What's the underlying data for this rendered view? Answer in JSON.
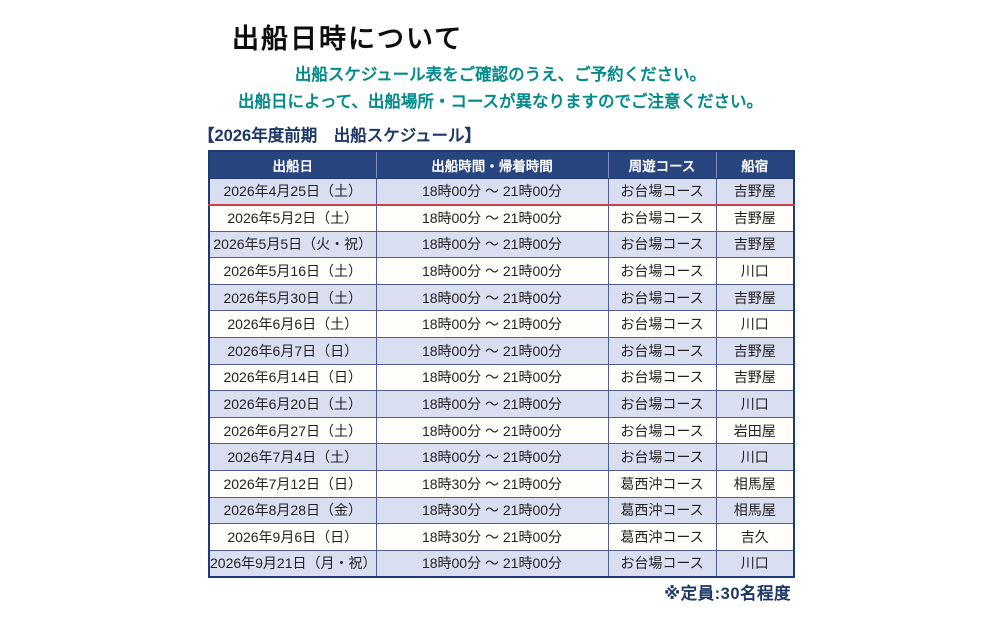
{
  "page": {
    "title": "出船日時について",
    "notes": [
      "出船スケジュール表をご確認のうえ、ご予約ください。",
      "出船日によって、出船場所・コースが異なりますのでご注意ください。"
    ],
    "schedule_heading": "【2026年度前期　出船スケジュール】",
    "capacity_note": "※定員:30名程度"
  },
  "colors": {
    "note_teal": "#038a8a",
    "heading_navy": "#1d3866",
    "header_bg": "#29457f",
    "header_text": "#ffffff",
    "outer_border": "#1e3a76",
    "grid_border": "#4e5f97",
    "row_alt_bg": "#d9dff0",
    "row_bg": "#fffefa",
    "red_divider": "#c4404e"
  },
  "table": {
    "columns": [
      "出船日",
      "出船時間・帰着時間",
      "周遊コース",
      "船宿"
    ],
    "rows": [
      {
        "date": "2026年4月25日（土）",
        "time": "18時00分 ～ 21時00分",
        "course": "お台場コース",
        "inn": "吉野屋"
      },
      {
        "date": "2026年5月2日（土）",
        "time": "18時00分 ～ 21時00分",
        "course": "お台場コース",
        "inn": "吉野屋"
      },
      {
        "date": "2026年5月5日（火・祝）",
        "time": "18時00分 ～ 21時00分",
        "course": "お台場コース",
        "inn": "吉野屋"
      },
      {
        "date": "2026年5月16日（土）",
        "time": "18時00分 ～ 21時00分",
        "course": "お台場コース",
        "inn": "川口"
      },
      {
        "date": "2026年5月30日（土）",
        "time": "18時00分 ～ 21時00分",
        "course": "お台場コース",
        "inn": "吉野屋"
      },
      {
        "date": "2026年6月6日（土）",
        "time": "18時00分 ～ 21時00分",
        "course": "お台場コース",
        "inn": "川口"
      },
      {
        "date": "2026年6月7日（日）",
        "time": "18時00分 ～ 21時00分",
        "course": "お台場コース",
        "inn": "吉野屋"
      },
      {
        "date": "2026年6月14日（日）",
        "time": "18時00分 ～ 21時00分",
        "course": "お台場コース",
        "inn": "吉野屋"
      },
      {
        "date": "2026年6月20日（土）",
        "time": "18時00分 ～ 21時00分",
        "course": "お台場コース",
        "inn": "川口"
      },
      {
        "date": "2026年6月27日（土）",
        "time": "18時00分 ～ 21時00分",
        "course": "お台場コース",
        "inn": "岩田屋"
      },
      {
        "date": "2026年7月4日（土）",
        "time": "18時00分 ～ 21時00分",
        "course": "お台場コース",
        "inn": "川口"
      },
      {
        "date": "2026年7月12日（日）",
        "time": "18時30分 ～ 21時00分",
        "course": "葛西沖コース",
        "inn": "相馬屋"
      },
      {
        "date": "2026年8月28日（金）",
        "time": "18時30分 ～ 21時00分",
        "course": "葛西沖コース",
        "inn": "相馬屋"
      },
      {
        "date": "2026年9月6日（日）",
        "time": "18時30分 ～ 21時00分",
        "course": "葛西沖コース",
        "inn": "吉久"
      },
      {
        "date": "2026年9月21日（月・祝）",
        "time": "18時00分 ～ 21時00分",
        "course": "お台場コース",
        "inn": "川口"
      }
    ]
  }
}
